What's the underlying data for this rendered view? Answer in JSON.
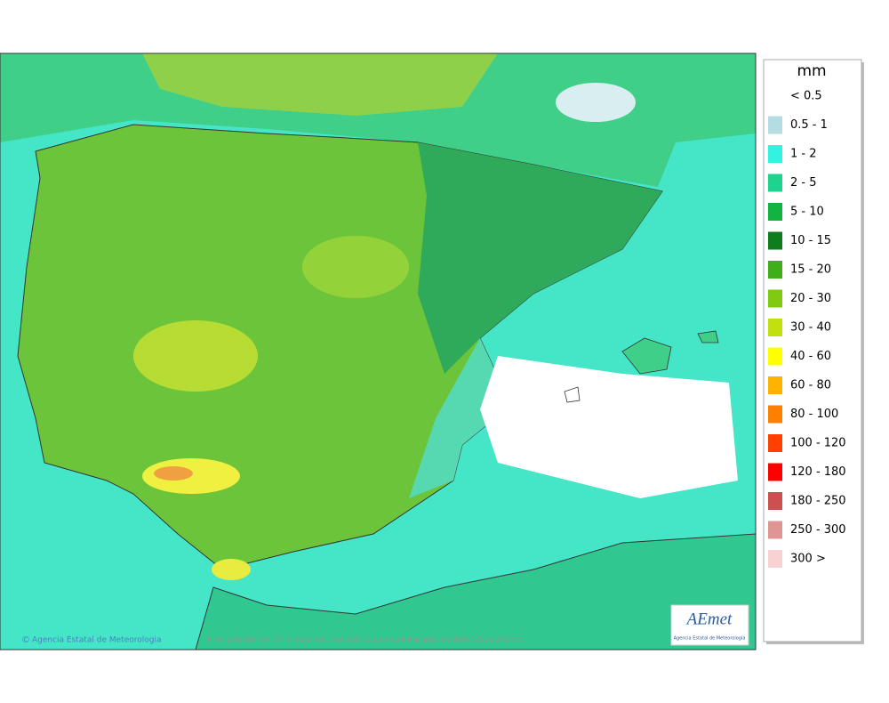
{
  "legend": {
    "unit": "mm",
    "items": [
      {
        "label": "< 0.5",
        "color": "#ffffff"
      },
      {
        "label": "0.5 - 1",
        "color": "#b3dde2"
      },
      {
        "label": "1 - 2",
        "color": "#33f2e2"
      },
      {
        "label": "2 - 5",
        "color": "#1ed38e"
      },
      {
        "label": "5 - 10",
        "color": "#12b340"
      },
      {
        "label": "10 - 15",
        "color": "#0f7d1e"
      },
      {
        "label": "15 - 20",
        "color": "#3fae1a"
      },
      {
        "label": "20 - 30",
        "color": "#7ecb12"
      },
      {
        "label": "30 - 40",
        "color": "#c2e00f"
      },
      {
        "label": "40 - 60",
        "color": "#ffff00"
      },
      {
        "label": "60 - 80",
        "color": "#ffb300"
      },
      {
        "label": "80 - 100",
        "color": "#ff7f00"
      },
      {
        "label": "100 - 120",
        "color": "#ff4000"
      },
      {
        "label": "120 - 180",
        "color": "#ff0000"
      },
      {
        "label": "180 - 250",
        "color": "#cc5050"
      },
      {
        "label": "250 - 300",
        "color": "#e09595"
      },
      {
        "label": "300 >",
        "color": "#f8d2d2"
      }
    ]
  },
  "footer": {
    "credit": "Agencia Estatal de Meteorologia",
    "caption": "Precipitación en 24 h máxima. Validez: 20260429 Pasada modelo: 2026042700"
  },
  "logo": {
    "name": "AEmet",
    "subtitle": "Agencia Estatal de Meteorología"
  }
}
